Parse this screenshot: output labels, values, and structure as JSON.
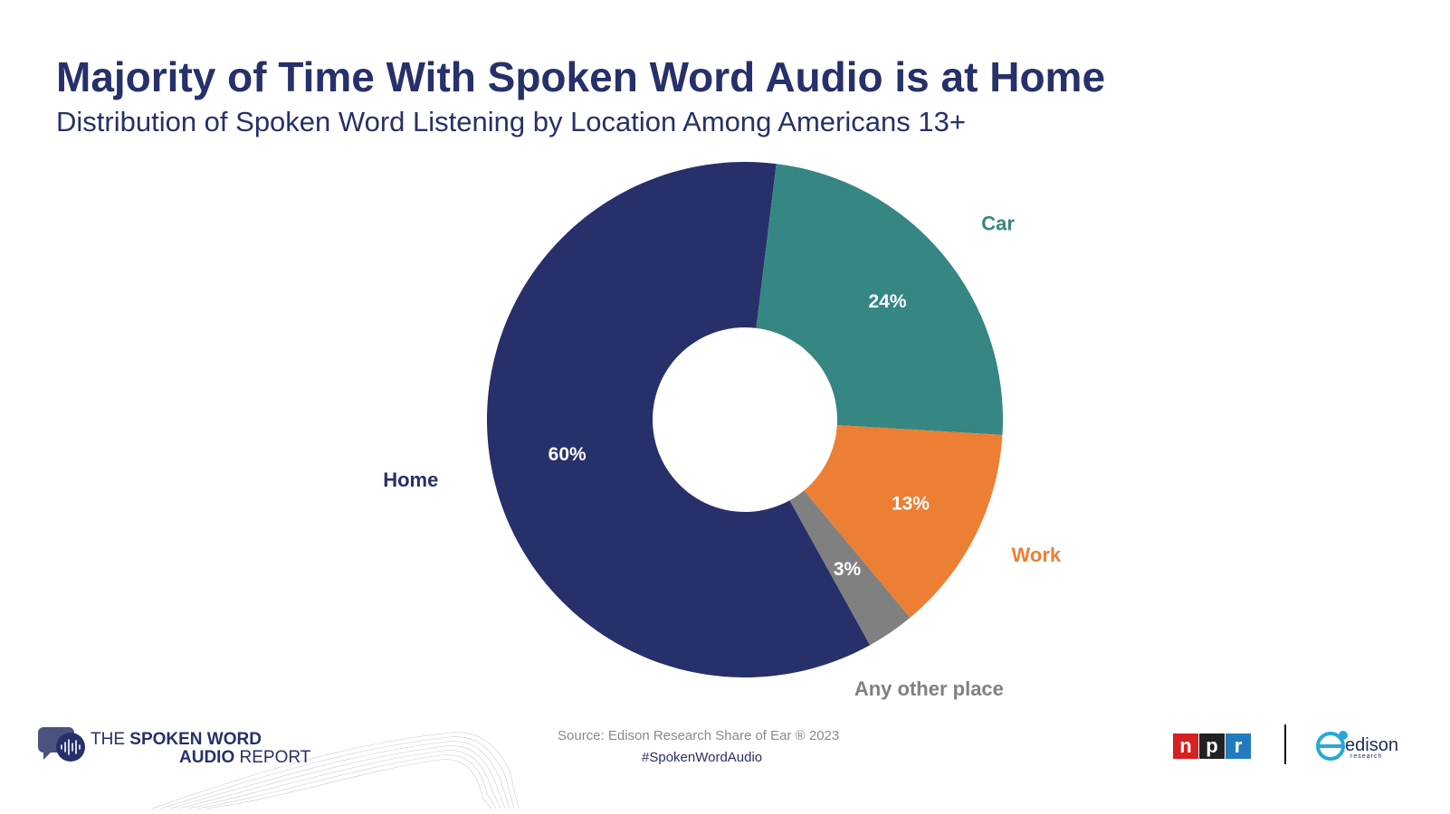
{
  "header": {
    "title": "Majority of Time With Spoken Word Audio is at Home",
    "subtitle": "Distribution of Spoken Word Listening by Location Among Americans 13+"
  },
  "chart_data": {
    "type": "pie",
    "donut": true,
    "categories": [
      "Home",
      "Car",
      "Work",
      "Any other place"
    ],
    "values": [
      60,
      24,
      13,
      3
    ],
    "value_labels": [
      "60%",
      "24%",
      "13%",
      "3%"
    ],
    "colors": [
      "#27306a",
      "#368683",
      "#ec7f34",
      "#808080"
    ],
    "legend": "none (slices labeled directly)"
  },
  "footer": {
    "brand_line1_prefix": "THE ",
    "brand_line1_strong": "SPOKEN WORD",
    "brand_line2_strong": "AUDIO",
    "brand_line2_suffix": " REPORT",
    "source": "Source: Edison Research Share of Ear ® 2023",
    "hashtag": "#SpokenWordAudio",
    "logo_npr": [
      "n",
      "p",
      "r"
    ],
    "logo_edison": "edison",
    "logo_edison_sub": "research",
    "colors": {
      "npr_n": "#d62021",
      "npr_p": "#222222",
      "npr_r": "#237bbd",
      "navy": "#27306a"
    }
  }
}
